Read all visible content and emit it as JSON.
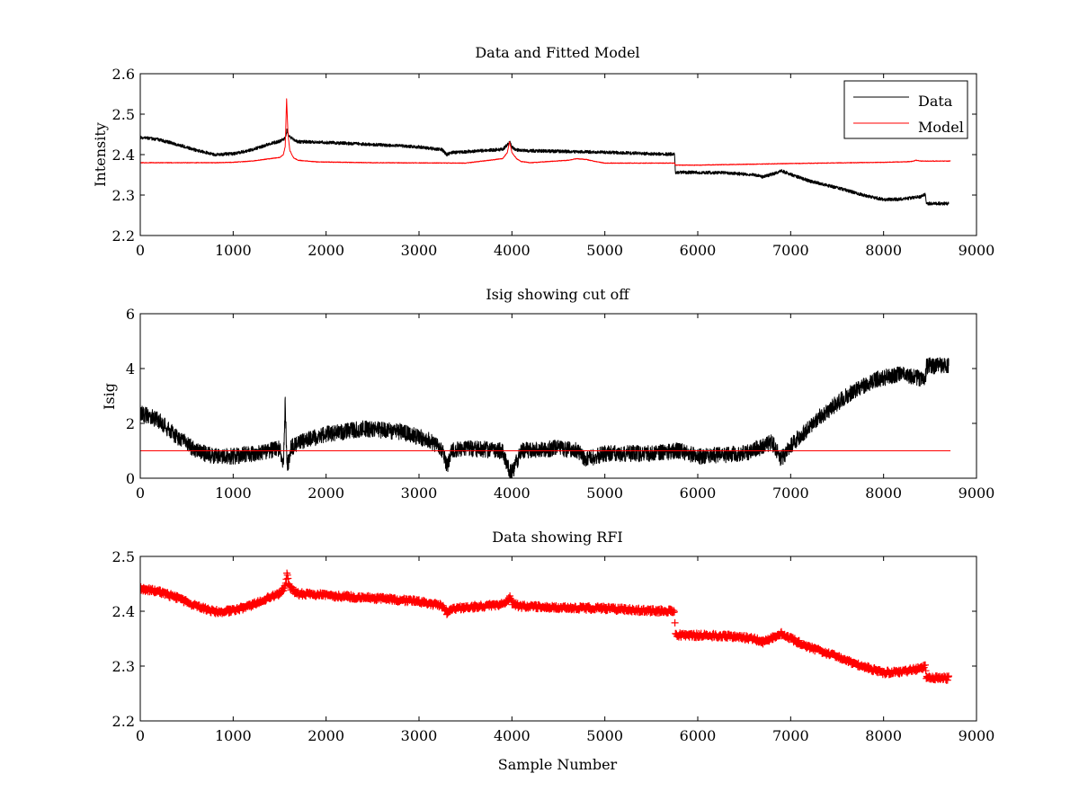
{
  "chart_data": [
    {
      "type": "line",
      "title": "Data and Fitted Model",
      "xlabel": "",
      "ylabel": "Intensity",
      "xlim": [
        0,
        9000
      ],
      "ylim": [
        2.2,
        2.6
      ],
      "xticks": [
        0,
        1000,
        2000,
        3000,
        4000,
        5000,
        6000,
        7000,
        8000,
        9000
      ],
      "xtick_labels": [
        "0",
        "1000",
        "2000",
        "3000",
        "4000",
        "5000",
        "6000",
        "7000",
        "8000",
        "9000"
      ],
      "yticks": [
        2.2,
        2.3,
        2.4,
        2.5,
        2.6
      ],
      "ytick_labels": [
        "2.2",
        "2.3",
        "2.4",
        "2.5",
        "2.6"
      ],
      "legend": "top-right",
      "grid": false,
      "series": [
        {
          "name": "Data",
          "color": "#000000",
          "noise": 0.004,
          "x": [
            0,
            200,
            400,
            600,
            800,
            1000,
            1200,
            1400,
            1500,
            1560,
            1580,
            1600,
            1650,
            1700,
            2000,
            2500,
            3000,
            3250,
            3300,
            3350,
            3500,
            3900,
            3960,
            3980,
            4000,
            4050,
            4100,
            4500,
            5000,
            5500,
            5750,
            5760,
            6000,
            6300,
            6600,
            6700,
            6850,
            6900,
            7000,
            7200,
            7500,
            7800,
            8000,
            8200,
            8400,
            8450,
            8460,
            8700
          ],
          "y": [
            2.443,
            2.437,
            2.425,
            2.411,
            2.4,
            2.402,
            2.412,
            2.427,
            2.433,
            2.44,
            2.462,
            2.445,
            2.437,
            2.432,
            2.43,
            2.425,
            2.419,
            2.412,
            2.4,
            2.405,
            2.407,
            2.413,
            2.426,
            2.433,
            2.418,
            2.412,
            2.41,
            2.408,
            2.406,
            2.402,
            2.401,
            2.356,
            2.356,
            2.355,
            2.35,
            2.345,
            2.355,
            2.36,
            2.351,
            2.335,
            2.318,
            2.299,
            2.289,
            2.29,
            2.296,
            2.302,
            2.279,
            2.279
          ]
        },
        {
          "name": "Model",
          "color": "#ff0000",
          "noise": 0.0008,
          "x": [
            0,
            800,
            1000,
            1200,
            1400,
            1500,
            1540,
            1560,
            1575,
            1590,
            1610,
            1650,
            1700,
            1900,
            2500,
            3500,
            3900,
            3950,
            3975,
            4000,
            4050,
            4100,
            4200,
            4600,
            4700,
            4800,
            4900,
            5000,
            5750,
            5760,
            6000,
            7000,
            8000,
            8200,
            8300,
            8350,
            8400,
            8720
          ],
          "y": [
            2.38,
            2.38,
            2.381,
            2.384,
            2.39,
            2.393,
            2.4,
            2.42,
            2.538,
            2.45,
            2.41,
            2.392,
            2.386,
            2.382,
            2.38,
            2.379,
            2.39,
            2.405,
            2.432,
            2.405,
            2.39,
            2.383,
            2.38,
            2.386,
            2.39,
            2.388,
            2.383,
            2.379,
            2.379,
            2.374,
            2.374,
            2.378,
            2.381,
            2.382,
            2.383,
            2.386,
            2.384,
            2.384
          ]
        }
      ]
    },
    {
      "type": "line",
      "title": "Isig showing cut off",
      "xlabel": "",
      "ylabel": "Isig",
      "xlim": [
        0,
        9000
      ],
      "ylim": [
        0,
        6
      ],
      "xticks": [
        0,
        1000,
        2000,
        3000,
        4000,
        5000,
        6000,
        7000,
        8000,
        9000
      ],
      "xtick_labels": [
        "0",
        "1000",
        "2000",
        "3000",
        "4000",
        "5000",
        "6000",
        "7000",
        "8000",
        "9000"
      ],
      "yticks": [
        0,
        2,
        4,
        6
      ],
      "ytick_labels": [
        "0",
        "2",
        "4",
        "6"
      ],
      "grid": false,
      "series": [
        {
          "name": "",
          "color": "#000000",
          "noise": 0.3,
          "x": [
            0,
            200,
            400,
            600,
            800,
            1000,
            1200,
            1400,
            1500,
            1540,
            1560,
            1580,
            1600,
            1620,
            1700,
            2000,
            2400,
            2800,
            3100,
            3250,
            3300,
            3350,
            3500,
            3900,
            3950,
            4000,
            4050,
            4100,
            4500,
            4700,
            4800,
            5000,
            5500,
            5800,
            6000,
            6500,
            6800,
            6900,
            7000,
            7300,
            7600,
            7900,
            8200,
            8450,
            8460,
            8700
          ],
          "y": [
            2.4,
            2.1,
            1.5,
            1.0,
            0.8,
            0.8,
            0.9,
            1.0,
            1.1,
            0.5,
            2.8,
            0.5,
            0.6,
            1.1,
            1.3,
            1.6,
            1.8,
            1.7,
            1.4,
            1.0,
            0.4,
            1.0,
            1.1,
            1.0,
            0.4,
            0.2,
            0.6,
            1.0,
            1.1,
            1.0,
            0.7,
            0.9,
            0.9,
            1.0,
            0.8,
            0.9,
            1.3,
            0.7,
            1.2,
            2.2,
            3.0,
            3.6,
            3.8,
            3.6,
            4.1,
            4.1
          ]
        },
        {
          "name": "",
          "color": "#ff0000",
          "noise": 0,
          "x": [
            0,
            8720
          ],
          "y": [
            1,
            1
          ]
        }
      ]
    },
    {
      "type": "scatter",
      "title": "Data showing RFI",
      "xlabel": "Sample Number",
      "ylabel": "",
      "xlim": [
        0,
        9000
      ],
      "ylim": [
        2.2,
        2.5
      ],
      "xticks": [
        0,
        1000,
        2000,
        3000,
        4000,
        5000,
        6000,
        7000,
        8000,
        9000
      ],
      "xtick_labels": [
        "0",
        "1000",
        "2000",
        "3000",
        "4000",
        "5000",
        "6000",
        "7000",
        "8000",
        "9000"
      ],
      "yticks": [
        2.2,
        2.3,
        2.4,
        2.5
      ],
      "ytick_labels": [
        "2.2",
        "2.3",
        "2.4",
        "2.5"
      ],
      "grid": false,
      "series": [
        {
          "name": "",
          "color": "#ff0000",
          "marker": "+",
          "noise": 0.004,
          "x": [
            0,
            200,
            400,
            600,
            800,
            1000,
            1200,
            1400,
            1500,
            1560,
            1580,
            1600,
            1650,
            1700,
            2000,
            2500,
            3000,
            3250,
            3300,
            3350,
            3500,
            3900,
            3960,
            3980,
            4000,
            4050,
            4100,
            4500,
            5000,
            5500,
            5750,
            5760,
            6000,
            6300,
            6600,
            6700,
            6850,
            6900,
            7000,
            7200,
            7500,
            7800,
            8000,
            8200,
            8400,
            8450,
            8460,
            8700
          ],
          "y": [
            2.441,
            2.436,
            2.424,
            2.41,
            2.399,
            2.401,
            2.411,
            2.426,
            2.432,
            2.444,
            2.468,
            2.446,
            2.437,
            2.432,
            2.429,
            2.424,
            2.418,
            2.41,
            2.398,
            2.404,
            2.407,
            2.412,
            2.422,
            2.426,
            2.416,
            2.411,
            2.409,
            2.407,
            2.405,
            2.401,
            2.4,
            2.357,
            2.356,
            2.355,
            2.35,
            2.344,
            2.356,
            2.359,
            2.35,
            2.334,
            2.317,
            2.298,
            2.288,
            2.29,
            2.296,
            2.3,
            2.278,
            2.278
          ]
        }
      ]
    }
  ]
}
